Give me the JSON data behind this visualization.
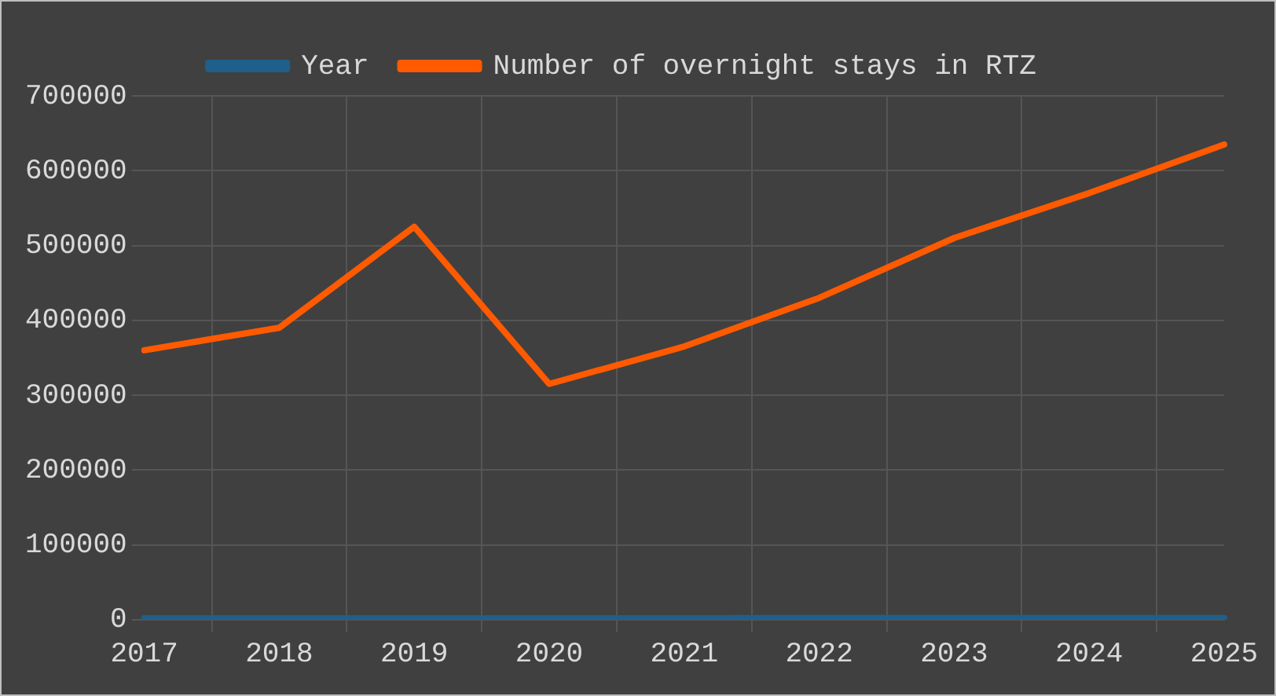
{
  "chart_data": {
    "type": "line",
    "categories": [
      "2017",
      "2018",
      "2019",
      "2020",
      "2021",
      "2022",
      "2023",
      "2024",
      "2025"
    ],
    "series": [
      {
        "name": "Year",
        "color": "#1f5f8b",
        "values": [
          2017,
          2018,
          2019,
          2020,
          2021,
          2022,
          2023,
          2024,
          2025
        ]
      },
      {
        "name": "Number of overnight stays in RTZ",
        "color": "#ff5a00",
        "values": [
          360000,
          390000,
          525000,
          315000,
          365000,
          430000,
          510000,
          570000,
          635000
        ]
      }
    ],
    "ylim": [
      0,
      700000
    ],
    "yticks": [
      0,
      100000,
      200000,
      300000,
      400000,
      500000,
      600000,
      700000
    ],
    "grid": true,
    "legend": "top",
    "marker": "none",
    "line_style": "solid"
  }
}
